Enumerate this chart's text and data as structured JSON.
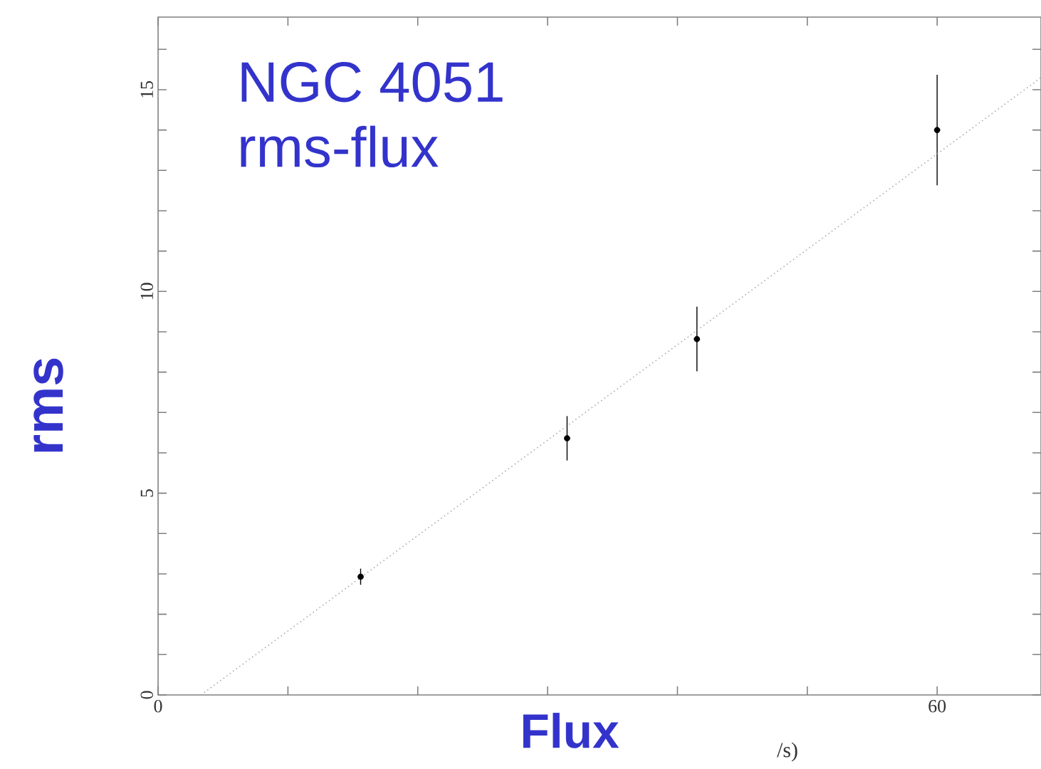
{
  "chart_data": {
    "type": "scatter",
    "title": "NGC 4051",
    "subtitle": "rms-flux",
    "xlabel": "Flux",
    "ylabel": "rms",
    "annotations": [
      "/s)"
    ],
    "xlim": [
      0,
      68
    ],
    "ylim": [
      0,
      16.8
    ],
    "xticks": [
      0,
      {
        "value": 10,
        "label": null
      },
      {
        "value": 20,
        "label": null
      },
      {
        "value": 30,
        "label": null
      },
      {
        "value": 40,
        "label": null
      },
      {
        "value": 50,
        "label": null
      },
      60
    ],
    "yticks": [
      0,
      {
        "value": 1,
        "label": null
      },
      {
        "value": 2,
        "label": null
      },
      {
        "value": 3,
        "label": null
      },
      {
        "value": 4,
        "label": null
      },
      5,
      {
        "value": 6,
        "label": null
      },
      {
        "value": 7,
        "label": null
      },
      {
        "value": 8,
        "label": null
      },
      {
        "value": 9,
        "label": null
      },
      10,
      {
        "value": 11,
        "label": null
      },
      {
        "value": 12,
        "label": null
      },
      {
        "value": 13,
        "label": null
      },
      {
        "value": 14,
        "label": null
      },
      15,
      {
        "value": 16,
        "label": null
      }
    ],
    "grid": false,
    "series": [
      {
        "color": "#000000",
        "marker": "circle",
        "x": [
          15.6,
          31.5,
          41.5,
          60.0
        ],
        "values": [
          2.93,
          6.36,
          8.82,
          14.0
        ],
        "errors": [
          0.2,
          0.55,
          0.8,
          1.37
        ]
      },
      {
        "type": "line",
        "color": "#aaaaaa",
        "line_style": "dotted",
        "marker": "none",
        "x": [
          3.3,
          68.0
        ],
        "values": [
          0,
          15.3
        ]
      }
    ]
  }
}
